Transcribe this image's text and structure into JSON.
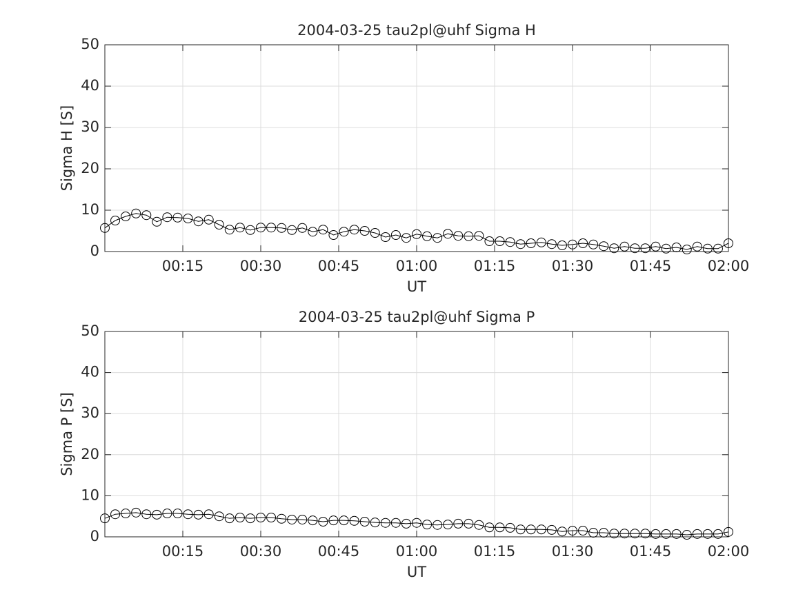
{
  "chart_data": [
    {
      "type": "line",
      "title": "2004-03-25  tau2pl@uhf Sigma H",
      "xlabel": "UT",
      "ylabel": "Sigma H [S]",
      "x": [
        "00:00",
        "00:02",
        "00:04",
        "00:06",
        "00:08",
        "00:10",
        "00:12",
        "00:14",
        "00:16",
        "00:18",
        "00:20",
        "00:22",
        "00:24",
        "00:26",
        "00:28",
        "00:30",
        "00:32",
        "00:34",
        "00:36",
        "00:38",
        "00:40",
        "00:42",
        "00:44",
        "00:46",
        "00:48",
        "00:50",
        "00:52",
        "00:54",
        "00:56",
        "00:58",
        "01:00",
        "01:02",
        "01:04",
        "01:06",
        "01:08",
        "01:10",
        "01:12",
        "01:14",
        "01:16",
        "01:18",
        "01:20",
        "01:22",
        "01:24",
        "01:26",
        "01:28",
        "01:30",
        "01:32",
        "01:34",
        "01:36",
        "01:38",
        "01:40",
        "01:42",
        "01:44",
        "01:46",
        "01:48",
        "01:50",
        "01:52",
        "01:54",
        "01:56",
        "01:58",
        "02:00"
      ],
      "values": [
        5.7,
        7.5,
        8.5,
        9.2,
        8.8,
        7.2,
        8.3,
        8.2,
        8.0,
        7.3,
        7.7,
        6.5,
        5.3,
        5.8,
        5.2,
        5.8,
        5.8,
        5.7,
        5.2,
        5.7,
        4.8,
        5.3,
        4.0,
        4.8,
        5.3,
        5.0,
        4.5,
        3.5,
        4.0,
        3.3,
        4.2,
        3.7,
        3.3,
        4.3,
        3.8,
        3.7,
        3.8,
        2.5,
        2.5,
        2.3,
        1.8,
        2.0,
        2.2,
        1.8,
        1.5,
        1.7,
        2.0,
        1.7,
        1.3,
        0.8,
        1.2,
        0.8,
        0.8,
        1.2,
        0.7,
        1.0,
        0.5,
        1.2,
        0.7,
        0.7,
        2.0
      ],
      "color": "#000000",
      "marker": "o",
      "xlim": [
        "00:00",
        "02:00"
      ],
      "xticks": [
        "00:15",
        "00:30",
        "00:45",
        "01:00",
        "01:15",
        "01:30",
        "01:45",
        "02:00"
      ],
      "ylim": [
        0,
        50
      ],
      "yticks": [
        0,
        10,
        20,
        30,
        40,
        50
      ],
      "grid": true
    },
    {
      "type": "line",
      "title": "2004-03-25  tau2pl@uhf Sigma P",
      "xlabel": "UT",
      "ylabel": "Sigma P [S]",
      "x": [
        "00:00",
        "00:02",
        "00:04",
        "00:06",
        "00:08",
        "00:10",
        "00:12",
        "00:14",
        "00:16",
        "00:18",
        "00:20",
        "00:22",
        "00:24",
        "00:26",
        "00:28",
        "00:30",
        "00:32",
        "00:34",
        "00:36",
        "00:38",
        "00:40",
        "00:42",
        "00:44",
        "00:46",
        "00:48",
        "00:50",
        "00:52",
        "00:54",
        "00:56",
        "00:58",
        "01:00",
        "01:02",
        "01:04",
        "01:06",
        "01:08",
        "01:10",
        "01:12",
        "01:14",
        "01:16",
        "01:18",
        "01:20",
        "01:22",
        "01:24",
        "01:26",
        "01:28",
        "01:30",
        "01:32",
        "01:34",
        "01:36",
        "01:38",
        "01:40",
        "01:42",
        "01:44",
        "01:46",
        "01:48",
        "01:50",
        "01:52",
        "01:54",
        "01:56",
        "01:58",
        "02:00"
      ],
      "values": [
        4.5,
        5.5,
        5.7,
        5.9,
        5.5,
        5.4,
        5.7,
        5.7,
        5.5,
        5.4,
        5.5,
        5.0,
        4.5,
        4.7,
        4.5,
        4.7,
        4.7,
        4.4,
        4.2,
        4.2,
        4.0,
        3.7,
        4.0,
        4.0,
        3.9,
        3.7,
        3.5,
        3.4,
        3.4,
        3.2,
        3.4,
        3.0,
        2.9,
        3.0,
        3.2,
        3.2,
        2.9,
        2.3,
        2.3,
        2.2,
        1.8,
        1.8,
        1.8,
        1.7,
        1.3,
        1.5,
        1.5,
        1.0,
        1.0,
        0.8,
        0.8,
        0.8,
        0.8,
        0.7,
        0.7,
        0.7,
        0.5,
        0.7,
        0.7,
        0.7,
        1.2
      ],
      "color": "#000000",
      "marker": "o",
      "xlim": [
        "00:00",
        "02:00"
      ],
      "xticks": [
        "00:15",
        "00:30",
        "00:45",
        "01:00",
        "01:15",
        "01:30",
        "01:45",
        "02:00"
      ],
      "ylim": [
        0,
        50
      ],
      "yticks": [
        0,
        10,
        20,
        30,
        40,
        50
      ],
      "grid": true
    }
  ]
}
